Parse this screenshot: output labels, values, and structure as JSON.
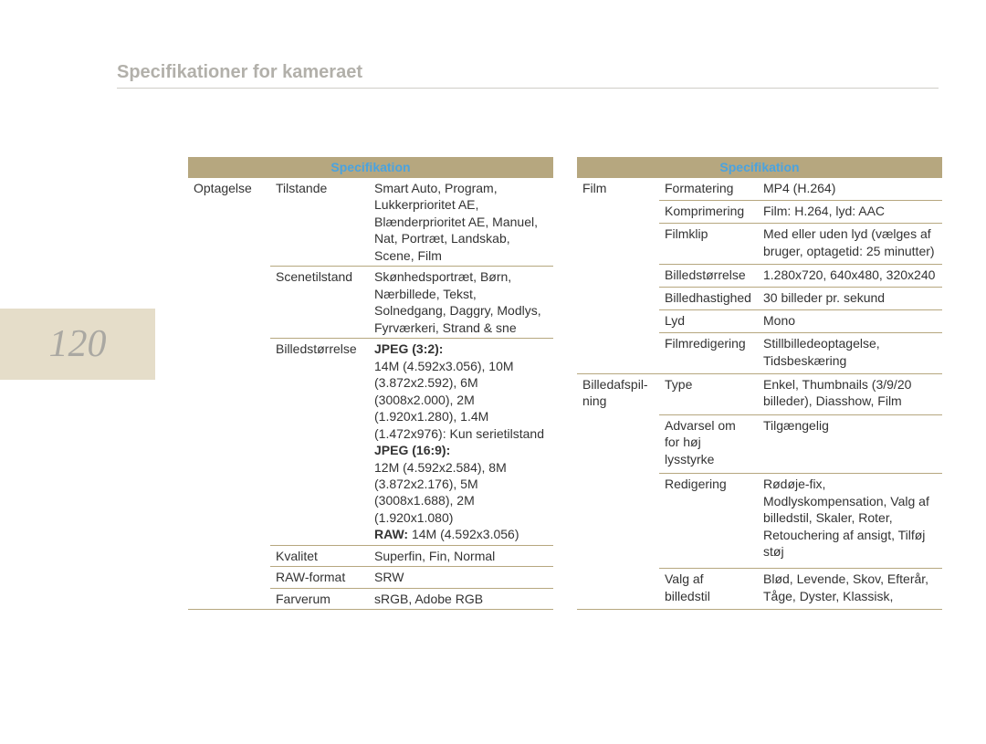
{
  "page_number": "120",
  "page_title": "Specifikationer for kameraet",
  "header_label": "Specifikation",
  "left_table": {
    "rows": [
      {
        "cat": "Optagelse",
        "sub": "Tilstande",
        "val_plain": "Smart Auto, Program, Lukkerprioritet AE, Blænderprioritet AE, Manuel, Nat, Portræt, Landskab, Scene, Film"
      },
      {
        "cat": "",
        "sub": "Scenetilstand",
        "val_plain": "Skønhedsportræt, Børn, Nærbillede, Tekst, Solnedgang, Daggry, Modlys, Fyrværkeri, Strand & sne"
      },
      {
        "cat": "",
        "sub": "Billedstørrelse",
        "jpeg32_label": "JPEG (3:2):",
        "jpeg32_body": "14M (4.592x3.056), 10M (3.872x2.592), 6M (3008x2.000), 2M (1.920x1.280), 1.4M (1.472x976): Kun serietilstand",
        "jpeg169_label": "JPEG (16:9):",
        "jpeg169_body": "12M (4.592x2.584), 8M (3.872x2.176), 5M (3008x1.688), 2M (1.920x1.080)",
        "raw_label": "RAW:",
        "raw_body": " 14M (4.592x3.056)"
      },
      {
        "cat": "",
        "sub": "Kvalitet",
        "val_plain": "Superfin, Fin, Normal"
      },
      {
        "cat": "",
        "sub": "RAW-format",
        "val_plain": "SRW"
      },
      {
        "cat": "",
        "sub": "Farverum",
        "val_plain": "sRGB, Adobe RGB"
      }
    ]
  },
  "right_table": {
    "rows": [
      {
        "cat": "Film",
        "sub": "Formatering",
        "val": "MP4 (H.264)"
      },
      {
        "cat": "",
        "sub": "Komprimering",
        "val": "Film: H.264, lyd: AAC"
      },
      {
        "cat": "",
        "sub": "Filmklip",
        "val": "Med eller uden lyd (vælges af bruger, optagetid: 25 minutter)"
      },
      {
        "cat": "",
        "sub": "Billedstørrelse",
        "val": "1.280x720, 640x480, 320x240"
      },
      {
        "cat": "",
        "sub": "Billedhastighed",
        "val": "30 billeder pr. sekund"
      },
      {
        "cat": "",
        "sub": "Lyd",
        "val": "Mono"
      },
      {
        "cat": "",
        "sub": "Filmredigering",
        "val": "Stillbilledeoptagelse, Tidsbeskæring"
      },
      {
        "cat": "Billedafspil-ning",
        "sub": "Type",
        "val": "Enkel, Thumbnails (3/9/20 billeder), Diasshow, Film"
      },
      {
        "cat": "",
        "sub": "Advarsel om for høj lysstyrke",
        "val": "Tilgængelig"
      },
      {
        "cat": "",
        "sub": "Redigering",
        "val": "Rødøje-fix, Modlyskompensation, Valg af billedstil, Skaler, Roter, Retouchering af ansigt, Tilføj støj"
      },
      {
        "cat": "",
        "sub": "Valg af billedstil",
        "val": "Blød, Levende, Skov, Efterår, Tåge, Dyster, Klassisk,"
      }
    ]
  }
}
